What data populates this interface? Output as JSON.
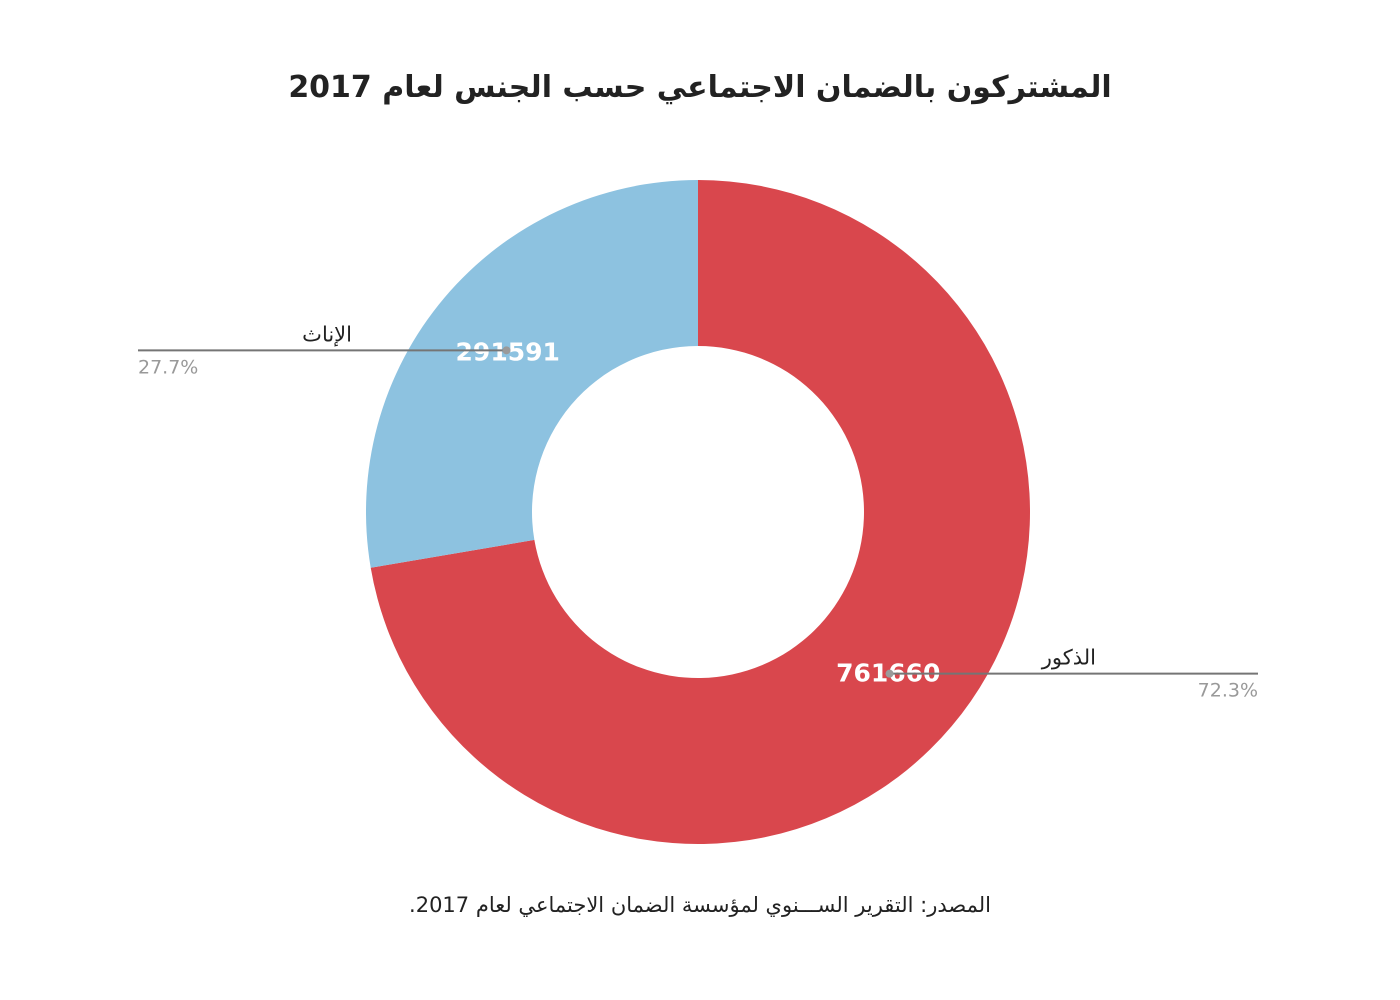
{
  "chart_data": {
    "type": "pie",
    "title": "المشتركون بالضمان الاجتماعي حسب الجنس لعام 2017",
    "source": "المصدر: التقرير الســـنوي لمؤسسة الضمان الاجتماعي لعام 2017.",
    "donut": true,
    "slices": [
      {
        "label": "الذكور",
        "value": 761660,
        "value_label": "761660",
        "percent_label": "72.3%",
        "color": "#d9474d"
      },
      {
        "label": "الإناث",
        "value": 291591,
        "value_label": "291591",
        "percent_label": "27.7%",
        "color": "#8dc2e0"
      }
    ]
  },
  "colors": {
    "background": "#ffffff",
    "text": "#222222",
    "muted_text": "#999999",
    "leader_line": "#757575"
  }
}
